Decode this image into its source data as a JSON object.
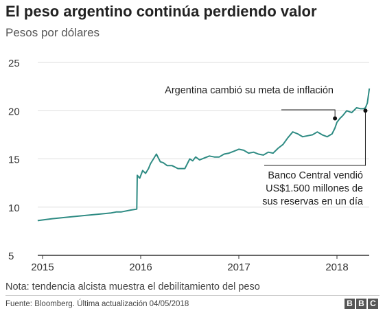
{
  "header": {
    "title": "El peso argentino continúa perdiendo valor",
    "subtitle": "Pesos por dólares"
  },
  "footer": {
    "note": "Nota: tendencia alcista muestra el debilitamiento del peso",
    "source": "Fuente: Bloomberg. Última actualización 04/05/2018",
    "logo_letters": [
      "B",
      "B",
      "C"
    ]
  },
  "colors": {
    "line": "#2e8b83",
    "grid": "#dddddd",
    "axis": "#333333",
    "text": "#333333"
  },
  "chart_data": {
    "type": "line",
    "title": "El peso argentino continúa perdiendo valor",
    "subtitle": "Pesos por dólares",
    "xlabel": "",
    "ylabel": "",
    "xlim": [
      2014.95,
      2018.33
    ],
    "ylim": [
      5,
      25
    ],
    "x_ticks": [
      2015,
      2016,
      2017,
      2018
    ],
    "x_tick_labels": [
      "2015",
      "2016",
      "2017",
      "2018"
    ],
    "y_ticks": [
      5,
      10,
      15,
      20,
      25
    ],
    "y_tick_labels": [
      "5",
      "10",
      "15",
      "20",
      "25"
    ],
    "grid": "horizontal",
    "series": [
      {
        "x": [
          2014.95,
          2015.1,
          2015.3,
          2015.5,
          2015.7,
          2015.75,
          2015.8,
          2015.9,
          2015.96,
          2015.965,
          2015.99,
          2016.02,
          2016.05,
          2016.08,
          2016.1,
          2016.13,
          2016.16,
          2016.2,
          2016.23,
          2016.27,
          2016.32,
          2016.38,
          2016.45,
          2016.5,
          2016.53,
          2016.56,
          2016.6,
          2016.65,
          2016.7,
          2016.75,
          2016.8,
          2016.85,
          2016.9,
          2016.95,
          2017.0,
          2017.05,
          2017.1,
          2017.15,
          2017.2,
          2017.25,
          2017.3,
          2017.35,
          2017.4,
          2017.45,
          2017.5,
          2017.55,
          2017.6,
          2017.65,
          2017.7,
          2017.75,
          2017.8,
          2017.85,
          2017.9,
          2017.95,
          2017.98,
          2018.0,
          2018.03,
          2018.06,
          2018.1,
          2018.15,
          2018.2,
          2018.24,
          2018.27,
          2018.29,
          2018.31,
          2018.33
        ],
        "y": [
          8.6,
          8.8,
          9.0,
          9.2,
          9.4,
          9.5,
          9.5,
          9.7,
          9.8,
          13.3,
          13.0,
          13.8,
          13.5,
          14.0,
          14.5,
          15.0,
          15.5,
          14.7,
          14.6,
          14.3,
          14.3,
          14.0,
          14.0,
          15.0,
          14.8,
          15.2,
          14.9,
          15.1,
          15.3,
          15.2,
          15.2,
          15.5,
          15.6,
          15.8,
          16.0,
          15.9,
          15.6,
          15.7,
          15.5,
          15.4,
          15.7,
          15.6,
          16.1,
          16.5,
          17.2,
          17.8,
          17.6,
          17.3,
          17.4,
          17.5,
          17.8,
          17.5,
          17.3,
          17.6,
          18.2,
          18.8,
          19.2,
          19.5,
          20.0,
          19.8,
          20.3,
          20.2,
          20.2,
          20.3,
          20.8,
          22.3
        ]
      }
    ],
    "annotations": [
      {
        "text": "Argentina cambió su meta de inflación",
        "x": 2017.98,
        "y": 19.2
      },
      {
        "lines": [
          "Banco Central vendió",
          "US$1.500 millones de",
          "sus reservas en un día"
        ],
        "x": 2018.29,
        "y": 20.0
      }
    ]
  }
}
